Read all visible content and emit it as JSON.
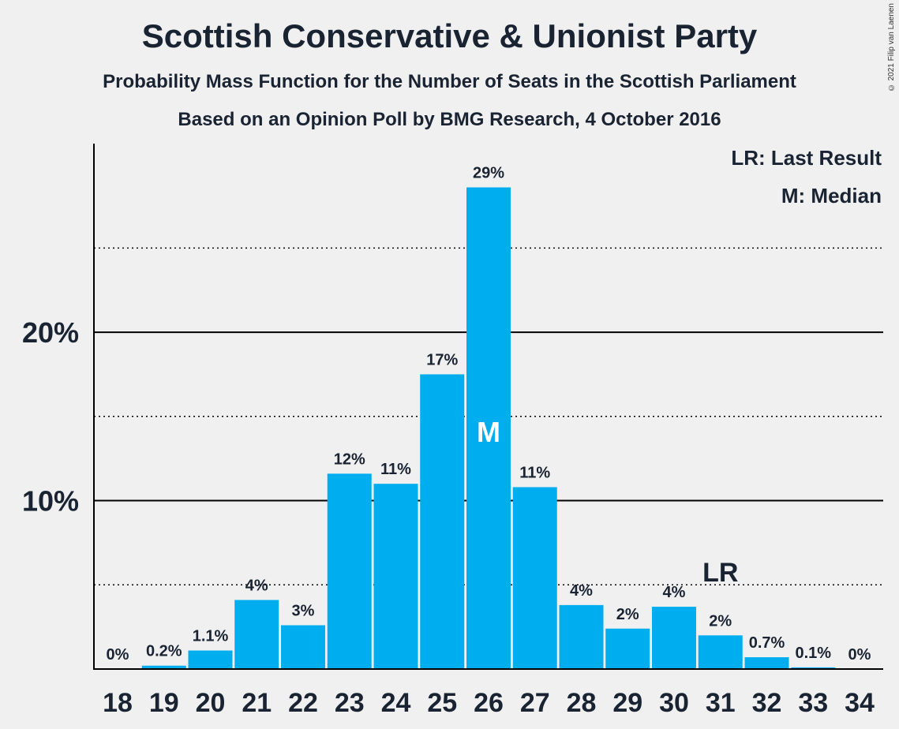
{
  "title": "Scottish Conservative & Unionist Party",
  "subtitle1": "Probability Mass Function for the Number of Seats in the Scottish Parliament",
  "subtitle2": "Based on an Opinion Poll by BMG Research, 4 October 2016",
  "copyright": "© 2021 Filip van Laenen",
  "legend": {
    "last_result": "LR: Last Result",
    "median": "M: Median"
  },
  "colors": {
    "bar": "#00aeef",
    "text": "#1a2332",
    "axis": "#000000"
  },
  "chart_data": {
    "type": "bar",
    "categories": [
      "18",
      "19",
      "20",
      "21",
      "22",
      "23",
      "24",
      "25",
      "26",
      "27",
      "28",
      "29",
      "30",
      "31",
      "32",
      "33",
      "34"
    ],
    "values": [
      0,
      0.2,
      1.1,
      4.1,
      2.6,
      11.6,
      11.0,
      17.5,
      28.6,
      10.8,
      3.8,
      2.4,
      3.7,
      2.0,
      0.7,
      0.1,
      0
    ],
    "labels": [
      "0%",
      "0.2%",
      "1.1%",
      "4%",
      "3%",
      "12%",
      "11%",
      "17%",
      "29%",
      "11%",
      "4%",
      "2%",
      "4%",
      "2%",
      "0.7%",
      "0.1%",
      "0%"
    ],
    "ylim": [
      0,
      31.2
    ],
    "yticks": [
      {
        "value": 10,
        "label": "10%"
      },
      {
        "value": 20,
        "label": "20%"
      }
    ],
    "dotted_gridlines": [
      5,
      15,
      25
    ],
    "solid_gridlines": [
      10,
      20
    ],
    "median": {
      "category": "26",
      "label": "M"
    },
    "last_result": {
      "category": "31",
      "label": "LR"
    },
    "legend_position": "top-right"
  }
}
